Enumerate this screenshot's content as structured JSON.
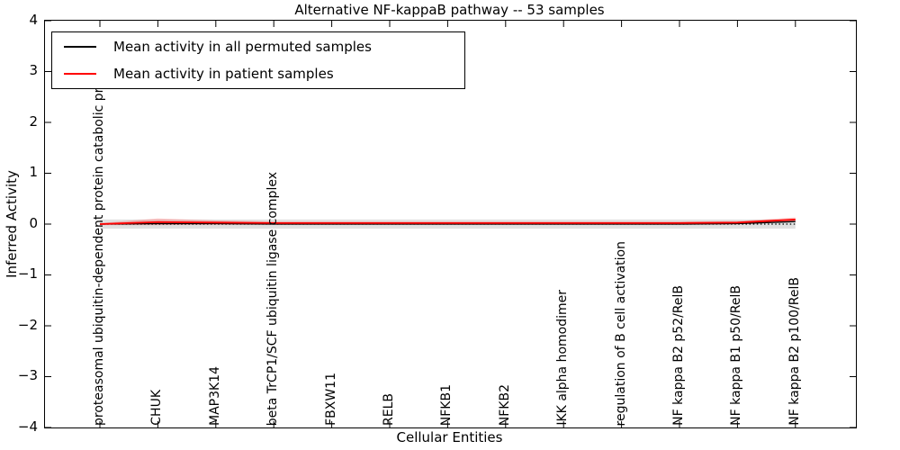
{
  "figure": {
    "title": "Alternative NF-kappaB pathway -- 53 samples",
    "xlabel": "Cellular Entities",
    "ylabel": "Inferred Activity"
  },
  "legend": {
    "entries": [
      {
        "label": "Mean activity in all permuted samples",
        "color": "#000000"
      },
      {
        "label": "Mean activity in patient samples",
        "color": "#ff0000"
      }
    ]
  },
  "chart_data": {
    "type": "line",
    "title": "Alternative NF-kappaB pathway -- 53 samples",
    "xlabel": "Cellular Entities",
    "ylabel": "Inferred Activity",
    "ylim": [
      -4,
      4
    ],
    "yticks": [
      4,
      3,
      2,
      1,
      0,
      -1,
      -2,
      -3,
      -4
    ],
    "grid": false,
    "legend_position": "upper left",
    "categories": [
      "proteasomal ubiquitin-dependent protein catabolic pr",
      "CHUK",
      "MAP3K14",
      "beta TrCP1/SCF ubiquitin ligase complex",
      "FBXW11",
      "RELB",
      "NFKB1",
      "NFKB2",
      "IKK alpha homodimer",
      "regulation of B cell activation",
      "NF kappa B2 p52/RelB",
      "NF kappa B1 p50/RelB",
      "NF kappa B2 p100/RelB"
    ],
    "series": [
      {
        "name": "Mean activity in all permuted samples",
        "color": "#000000",
        "values": [
          0.0,
          0.01,
          0.01,
          0.0,
          0.0,
          0.0,
          0.0,
          0.0,
          0.0,
          0.0,
          0.0,
          0.01,
          0.05
        ]
      },
      {
        "name": "Mean activity in patient samples",
        "color": "#ff0000",
        "values": [
          0.0,
          0.04,
          0.03,
          0.02,
          0.02,
          0.02,
          0.02,
          0.02,
          0.02,
          0.02,
          0.02,
          0.03,
          0.09
        ]
      }
    ],
    "bands": [
      {
        "name": "permuted-std-band",
        "color": "#bbbbbb",
        "opacity": 0.45,
        "upper": [
          0.09,
          0.09,
          0.09,
          0.09,
          0.09,
          0.09,
          0.09,
          0.09,
          0.09,
          0.09,
          0.09,
          0.09,
          0.09
        ],
        "lower": [
          -0.09,
          -0.09,
          -0.09,
          -0.09,
          -0.09,
          -0.09,
          -0.09,
          -0.09,
          -0.09,
          -0.09,
          -0.09,
          -0.09,
          -0.09
        ]
      },
      {
        "name": "patient-std-band",
        "color": "#ff0000",
        "opacity": 0.22,
        "upper": [
          0.02,
          0.11,
          0.07,
          0.05,
          0.05,
          0.05,
          0.05,
          0.05,
          0.05,
          0.05,
          0.05,
          0.06,
          0.13
        ],
        "lower": [
          -0.02,
          -0.02,
          -0.01,
          -0.01,
          -0.01,
          -0.01,
          -0.01,
          -0.01,
          -0.01,
          -0.01,
          -0.01,
          0.0,
          0.05
        ]
      }
    ],
    "zero_line": {
      "y": 0,
      "style": "dotted",
      "color": "#000000"
    }
  }
}
